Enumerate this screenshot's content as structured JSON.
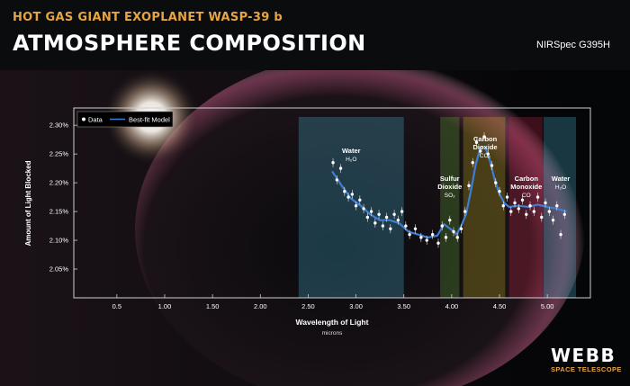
{
  "header": {
    "subtitle": "HOT GAS GIANT EXOPLANET WASP-39 b",
    "title": "ATMOSPHERE COMPOSITION",
    "instrument": "NIRSpec G395H"
  },
  "logo": {
    "word": "WEBB",
    "sub": "SPACE TELESCOPE"
  },
  "colors": {
    "accent": "#e7a443",
    "model_line": "#3d7fd6",
    "data_point": "#ffffff",
    "plot_border": "#cfcfcf",
    "water_band": "#4bb6d8",
    "so2_band": "#67b03a",
    "co2_band": "#c9b21c",
    "co_band": "#c8264a"
  },
  "chart_data": {
    "type": "scatter",
    "title": "",
    "xlabel": "Wavelength of Light",
    "xlabel_unit": "microns",
    "ylabel": "Amount of Light Blocked",
    "xlim": [
      0.05,
      5.45
    ],
    "ylim": [
      2.0,
      2.33
    ],
    "x_ticks": [
      0.5,
      1.0,
      1.5,
      2.0,
      2.5,
      3.0,
      3.5,
      4.0,
      4.5,
      5.0
    ],
    "x_tick_labels": [
      "0.5",
      "1.00",
      "1.50",
      "2.00",
      "2.50",
      "3.00",
      "3.50",
      "4.00",
      "4.50",
      "5.00"
    ],
    "y_ticks": [
      2.05,
      2.1,
      2.15,
      2.2,
      2.25,
      2.3
    ],
    "y_tick_labels": [
      "2.05%",
      "2.10%",
      "2.15%",
      "2.20%",
      "2.25%",
      "2.30%"
    ],
    "legend": {
      "position": "top-left",
      "entries": [
        "Data",
        "Best-fit Model"
      ]
    },
    "bands": [
      {
        "from": 2.4,
        "to": 3.5,
        "color": "#4bb6d8"
      },
      {
        "from": 3.88,
        "to": 4.08,
        "color": "#67b03a"
      },
      {
        "from": 4.12,
        "to": 4.56,
        "color": "#c9b21c"
      },
      {
        "from": 4.6,
        "to": 4.95,
        "color": "#c8264a"
      },
      {
        "from": 4.96,
        "to": 5.3,
        "color": "#4bb6d8"
      }
    ],
    "annotations": [
      {
        "lines": [
          "Water",
          "H₂O"
        ],
        "x": 2.95,
        "y": 2.252
      },
      {
        "lines": [
          "Sulfur",
          "Dioxide",
          "SO₂"
        ],
        "x": 3.98,
        "y": 2.203
      },
      {
        "lines": [
          "Carbon",
          "Dioxide",
          "CO₂"
        ],
        "x": 4.35,
        "y": 2.272
      },
      {
        "lines": [
          "Carbon",
          "Monoxide",
          "CO"
        ],
        "x": 4.78,
        "y": 2.203
      },
      {
        "lines": [
          "Water",
          "H₂O"
        ],
        "x": 5.14,
        "y": 2.203
      }
    ],
    "series": [
      {
        "name": "Best-fit Model",
        "kind": "line",
        "x": [
          2.75,
          2.85,
          2.95,
          3.05,
          3.15,
          3.25,
          3.35,
          3.45,
          3.55,
          3.65,
          3.75,
          3.85,
          3.92,
          4.0,
          4.05,
          4.1,
          4.15,
          4.2,
          4.25,
          4.3,
          4.35,
          4.4,
          4.45,
          4.5,
          4.55,
          4.6,
          4.7,
          4.8,
          4.9,
          5.0,
          5.1,
          5.2
        ],
        "y": [
          2.22,
          2.195,
          2.172,
          2.16,
          2.145,
          2.135,
          2.135,
          2.13,
          2.115,
          2.11,
          2.105,
          2.108,
          2.128,
          2.118,
          2.11,
          2.125,
          2.145,
          2.185,
          2.23,
          2.262,
          2.262,
          2.238,
          2.205,
          2.18,
          2.165,
          2.158,
          2.16,
          2.158,
          2.162,
          2.158,
          2.155,
          2.15
        ]
      },
      {
        "name": "Data",
        "kind": "points",
        "x": [
          2.76,
          2.8,
          2.84,
          2.88,
          2.92,
          2.96,
          3.0,
          3.04,
          3.08,
          3.12,
          3.16,
          3.2,
          3.24,
          3.28,
          3.32,
          3.36,
          3.4,
          3.44,
          3.48,
          3.52,
          3.56,
          3.62,
          3.68,
          3.74,
          3.8,
          3.86,
          3.9,
          3.94,
          3.98,
          4.02,
          4.06,
          4.1,
          4.14,
          4.18,
          4.22,
          4.26,
          4.3,
          4.34,
          4.38,
          4.42,
          4.46,
          4.5,
          4.54,
          4.58,
          4.62,
          4.66,
          4.7,
          4.74,
          4.78,
          4.82,
          4.86,
          4.9,
          4.94,
          4.98,
          5.02,
          5.06,
          5.1,
          5.14,
          5.18
        ],
        "y": [
          2.235,
          2.205,
          2.225,
          2.185,
          2.175,
          2.18,
          2.16,
          2.17,
          2.155,
          2.14,
          2.15,
          2.13,
          2.145,
          2.125,
          2.14,
          2.12,
          2.145,
          2.135,
          2.15,
          2.125,
          2.11,
          2.12,
          2.105,
          2.1,
          2.11,
          2.095,
          2.125,
          2.105,
          2.135,
          2.115,
          2.105,
          2.12,
          2.15,
          2.195,
          2.235,
          2.27,
          2.255,
          2.28,
          2.25,
          2.23,
          2.2,
          2.185,
          2.16,
          2.175,
          2.15,
          2.165,
          2.155,
          2.17,
          2.145,
          2.16,
          2.15,
          2.175,
          2.14,
          2.165,
          2.15,
          2.135,
          2.16,
          2.11,
          2.145
        ]
      }
    ]
  }
}
